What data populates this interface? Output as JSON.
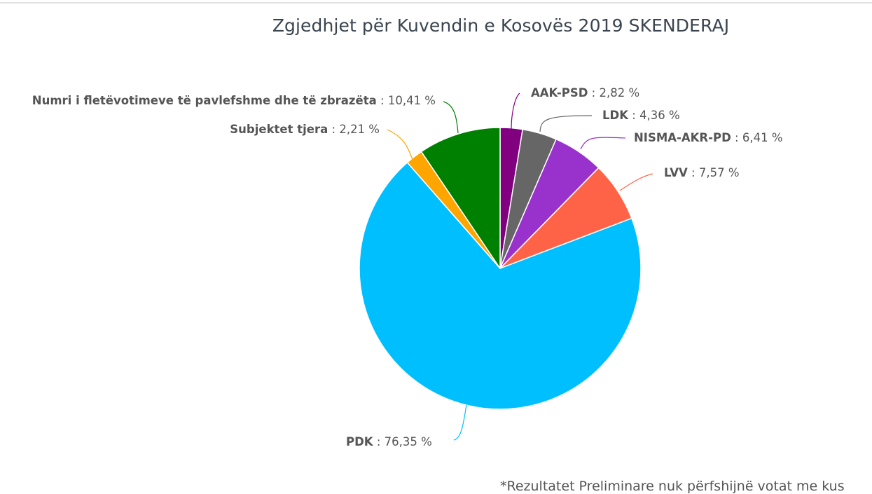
{
  "chart_data": {
    "type": "pie",
    "title": "Zgjedhjet për Kuvendin e Kosovës 2019 SKENDERAJ",
    "start_angle": "top, clockwise",
    "slices": [
      {
        "name": "AAK-PSD",
        "value": 2.82,
        "label": "2,82 %",
        "color": "#800080"
      },
      {
        "name": "LDK",
        "value": 4.36,
        "label": "4,36 %",
        "color": "#666666"
      },
      {
        "name": "NISMA-AKR-PD",
        "value": 6.41,
        "label": "6,41 %",
        "color": "#9932cc"
      },
      {
        "name": "LVV",
        "value": 7.57,
        "label": "7,57 %",
        "color": "#ff6347"
      },
      {
        "name": "PDK",
        "value": 76.35,
        "label": "76,35 %",
        "color": "#00bfff"
      },
      {
        "name": "Subjektet tjera",
        "value": 2.21,
        "label": "2,21 %",
        "color": "#ffa500"
      },
      {
        "name": "Numri i fletëvotimeve të pavlefshme dhe të zbrazëta",
        "value": 10.41,
        "label": "10,41 %",
        "color": "#008000"
      }
    ],
    "footnote": "*Rezultatet Preliminare nuk përfshijnë votat me kus"
  },
  "labels": {
    "aak": {
      "name": "AAK-PSD",
      "sep": " : ",
      "value": "2,82 %"
    },
    "ldk": {
      "name": "LDK",
      "sep": " : ",
      "value": "4,36 %"
    },
    "nisma": {
      "name": "NISMA-AKR-PD",
      "sep": " : ",
      "value": "6,41 %"
    },
    "lvv": {
      "name": "LVV",
      "sep": " : ",
      "value": "7,57 %"
    },
    "pdk": {
      "name": "PDK",
      "sep": " : ",
      "value": "76,35 %"
    },
    "subj": {
      "name": "Subjektet tjera",
      "sep": " : ",
      "value": "2,21 %"
    },
    "numri": {
      "name": "Numri i fletëvotimeve të pavlefshme dhe të zbrazëta",
      "sep": " : ",
      "value": "10,41 %"
    }
  }
}
